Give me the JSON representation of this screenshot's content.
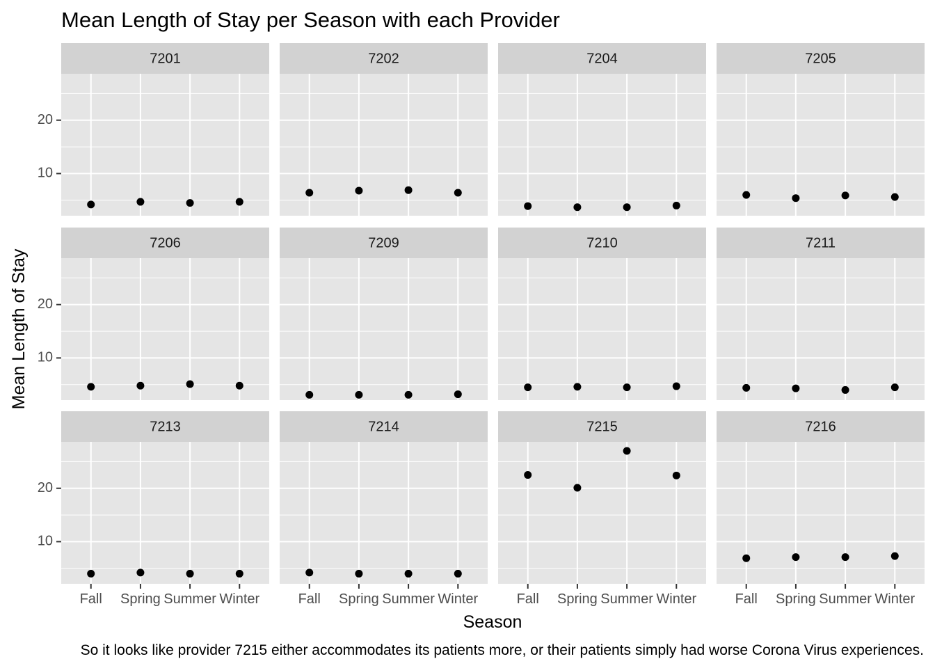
{
  "chart_data": {
    "type": "scatter",
    "title": "Mean Length of Stay per Season with each Provider",
    "xlabel": "Season",
    "ylabel": "Mean Length of Stay",
    "caption": "So it looks like provider 7215 either accommodates its patients more, or their patients simply had worse Corona Virus experiences.",
    "categories": [
      "Fall",
      "Spring",
      "Summer",
      "Winter"
    ],
    "y_ticks": [
      10,
      20
    ],
    "ylim": [
      2.1,
      28.7
    ],
    "grid": true,
    "facet_columns": 4,
    "panels": [
      {
        "name": "7201",
        "values": [
          4.2,
          4.7,
          4.5,
          4.7
        ]
      },
      {
        "name": "7202",
        "values": [
          6.4,
          6.8,
          6.9,
          6.4
        ]
      },
      {
        "name": "7204",
        "values": [
          3.9,
          3.7,
          3.7,
          4.0
        ]
      },
      {
        "name": "7205",
        "values": [
          6.0,
          5.4,
          5.9,
          5.6
        ]
      },
      {
        "name": "7206",
        "values": [
          4.6,
          4.8,
          5.1,
          4.8
        ]
      },
      {
        "name": "7209",
        "values": [
          3.1,
          3.1,
          3.1,
          3.2
        ]
      },
      {
        "name": "7210",
        "values": [
          4.5,
          4.6,
          4.5,
          4.7
        ]
      },
      {
        "name": "7211",
        "values": [
          4.4,
          4.3,
          4.0,
          4.5
        ]
      },
      {
        "name": "7213",
        "values": [
          4.0,
          4.2,
          4.0,
          4.0
        ]
      },
      {
        "name": "7214",
        "values": [
          4.2,
          4.0,
          4.0,
          4.0
        ]
      },
      {
        "name": "7215",
        "values": [
          22.5,
          20.1,
          27.0,
          22.4
        ]
      },
      {
        "name": "7216",
        "values": [
          6.9,
          7.1,
          7.1,
          7.3
        ]
      }
    ]
  }
}
